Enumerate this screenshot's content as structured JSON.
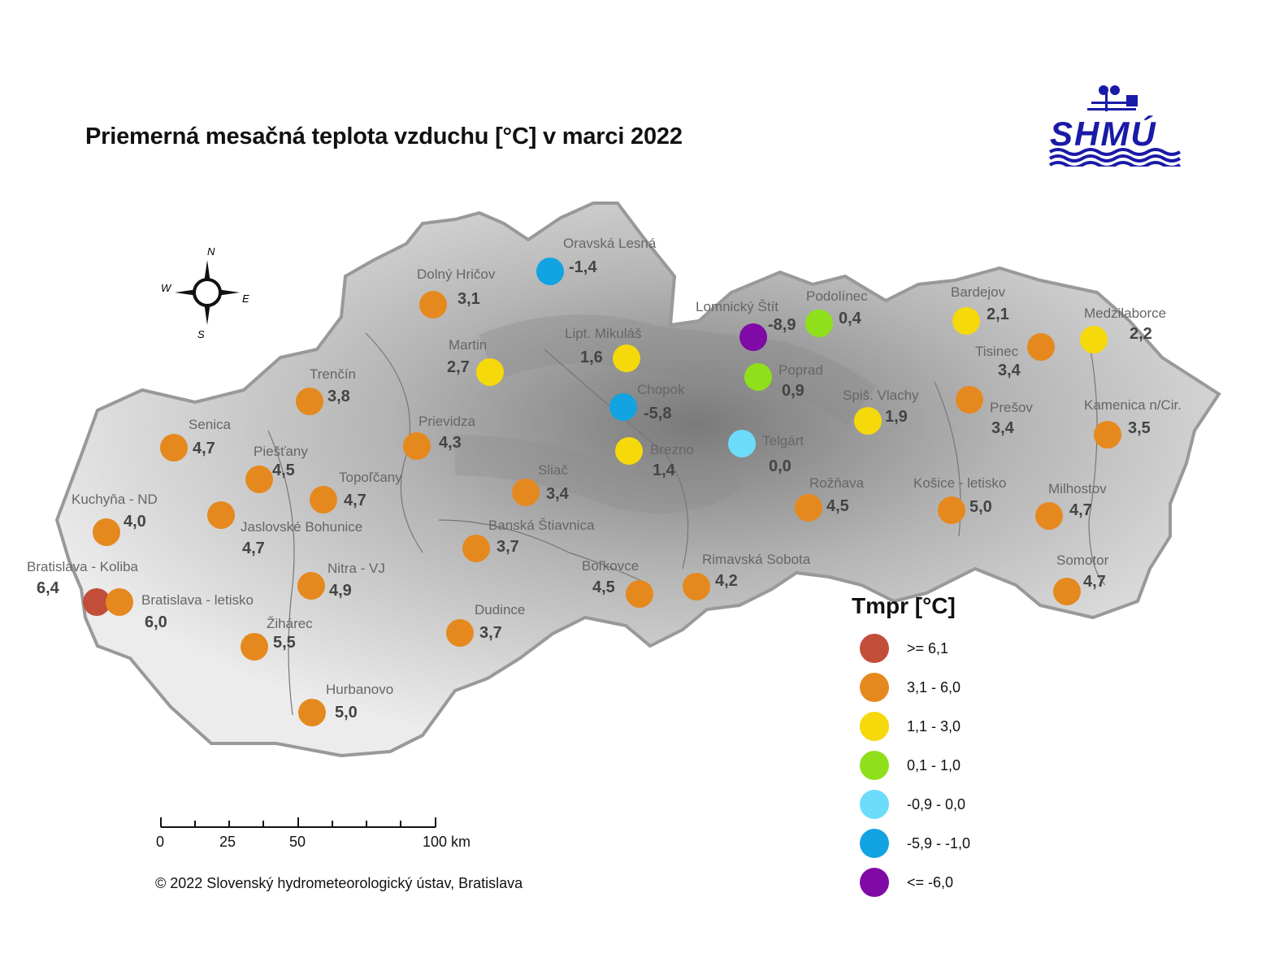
{
  "title": "Priemerná mesačná teplota vzduchu [°C] v marci 2022",
  "logo_text": "SHMÚ",
  "compass": {
    "n": "N",
    "s": "S",
    "e": "E",
    "w": "W"
  },
  "legend": {
    "title": "Tmpr [°C]",
    "classes": [
      {
        "label": ">= 6,1",
        "color": "#c24e3a"
      },
      {
        "label": "3,1 - 6,0",
        "color": "#e5891f"
      },
      {
        "label": "1,1 - 3,0",
        "color": "#f5d90a"
      },
      {
        "label": "0,1 - 1,0",
        "color": "#8fe01a"
      },
      {
        "label": "-0,9 - 0,0",
        "color": "#6ddcfa"
      },
      {
        "label": "-5,9 - -1,0",
        "color": "#12a3e2"
      },
      {
        "label": "<= -6,0",
        "color": "#7f0aa6"
      }
    ]
  },
  "scale": {
    "labels": [
      "0",
      "25",
      "50",
      "100 km"
    ]
  },
  "copyright": "© 2022 Slovenský hydrometeorologický ústav, Bratislava",
  "stations": [
    {
      "name": "Oravská Lesná",
      "value": "-1,4",
      "class": 5
    },
    {
      "name": "Dolný Hričov",
      "value": "3,1",
      "class": 1
    },
    {
      "name": "Martin",
      "value": "2,7",
      "class": 2
    },
    {
      "name": "Lipt. Mikuláš",
      "value": "1,6",
      "class": 2
    },
    {
      "name": "Lomnický Štít",
      "value": "-8,9",
      "class": 6
    },
    {
      "name": "Podolínec",
      "value": "0,4",
      "class": 3
    },
    {
      "name": "Bardejov",
      "value": "2,1",
      "class": 2
    },
    {
      "name": "Medzilaborce",
      "value": "2,2",
      "class": 2
    },
    {
      "name": "Tisinec",
      "value": "3,4",
      "class": 1
    },
    {
      "name": "Poprad",
      "value": "0,9",
      "class": 3
    },
    {
      "name": "Chopok",
      "value": "-5,8",
      "class": 5
    },
    {
      "name": "Trenčín",
      "value": "3,8",
      "class": 1
    },
    {
      "name": "Senica",
      "value": "4,7",
      "class": 1
    },
    {
      "name": "Prievidza",
      "value": "4,3",
      "class": 1
    },
    {
      "name": "Spiš. Vlachy",
      "value": "1,9",
      "class": 2
    },
    {
      "name": "Prešov",
      "value": "3,4",
      "class": 1
    },
    {
      "name": "Kamenica n/Cir.",
      "value": "3,5",
      "class": 1
    },
    {
      "name": "Brezno",
      "value": "1,4",
      "class": 2
    },
    {
      "name": "Telgárt",
      "value": "0,0",
      "class": 4
    },
    {
      "name": "Piešťany",
      "value": "4,5",
      "class": 1
    },
    {
      "name": "Topoľčany",
      "value": "4,7",
      "class": 1
    },
    {
      "name": "Sliač",
      "value": "3,4",
      "class": 1
    },
    {
      "name": "Kuchyňa - ND",
      "value": "4,0",
      "class": 1
    },
    {
      "name": "Jaslovské Bohunice",
      "value": "4,7",
      "class": 1
    },
    {
      "name": "Rožňava",
      "value": "4,5",
      "class": 1
    },
    {
      "name": "Košice - letisko",
      "value": "5,0",
      "class": 1
    },
    {
      "name": "Milhostov",
      "value": "4,7",
      "class": 1
    },
    {
      "name": "Banská Štiavnica",
      "value": "3,7",
      "class": 1
    },
    {
      "name": "Bratislava - Koliba",
      "value": "6,4",
      "class": 0
    },
    {
      "name": "Bratislava - letisko",
      "value": "6,0",
      "class": 1
    },
    {
      "name": "Nitra - VJ",
      "value": "4,9",
      "class": 1
    },
    {
      "name": "Boľkovce",
      "value": "4,5",
      "class": 1
    },
    {
      "name": "Rimavská Sobota",
      "value": "4,2",
      "class": 1
    },
    {
      "name": "Somotor",
      "value": "4,7",
      "class": 1
    },
    {
      "name": "Žihárec",
      "value": "5,5",
      "class": 1
    },
    {
      "name": "Dudince",
      "value": "3,7",
      "class": 1
    },
    {
      "name": "Hurbanovo",
      "value": "5,0",
      "class": 1
    }
  ]
}
